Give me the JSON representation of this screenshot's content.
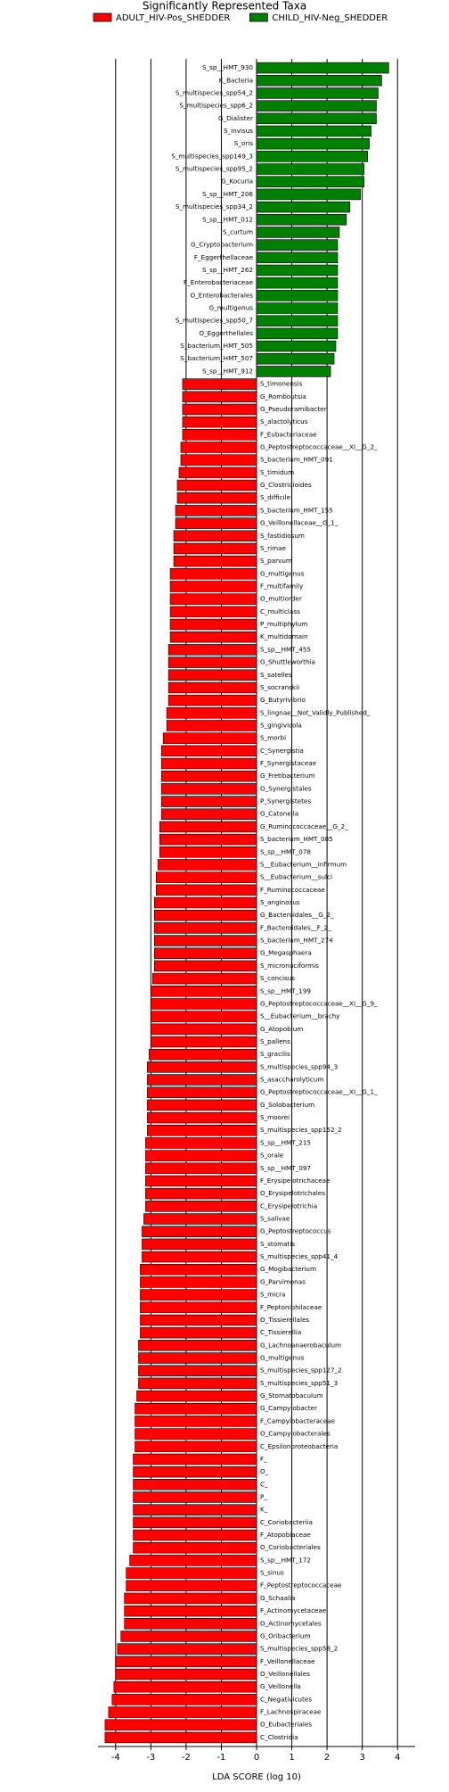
{
  "chart_data": {
    "type": "lda_bar",
    "title": "Significantly Represented Taxa",
    "xlabel": "LDA SCORE (log 10)",
    "xlim": [
      -4.5,
      4.5
    ],
    "xticks": [
      -4,
      -3,
      -2,
      -1,
      0,
      1,
      2,
      3,
      4
    ],
    "grid": true,
    "legend": "top",
    "series": [
      {
        "name": "ADULT_HIV-Pos_SHEDDER",
        "color": "#ff0000",
        "categories": [
          "S_timonensis",
          "G_Romboutsia",
          "G_Pseudoramibacter",
          "S_alactolyticus",
          "F_Eubacteriaceae",
          "G_Peptostreptococcaceae__XI__G_2_",
          "S_bacterium_HMT_091",
          "S_timidum",
          "G_Clostridioides",
          "S_difficile",
          "S_bacterium_HMT_155",
          "G_Veillonellaceae__G_1_",
          "S_fastidiosum",
          "S_rimae",
          "S_parvum",
          "G_multigenus",
          "F_multifamily",
          "O_multiorder",
          "C_multiclass",
          "P_multiphylum",
          "K_multidomain",
          "S_sp__HMT_455",
          "G_Shuttleworthia",
          "S_satelles",
          "S_socranskii",
          "G_Butyrivibrio",
          "S_lingnae__Not_Validly_Published_",
          "S_gingivicola",
          "S_morbi",
          "C_Synergistia",
          "F_Synergistaceae",
          "G_Fretibacterium",
          "O_Synergistales",
          "P_Synergistetes",
          "G_Catonella",
          "G_Ruminococcaceae__G_2_",
          "S_bacterium_HMT_085",
          "S_sp__HMT_078",
          "S__Eubacterium__infirmum",
          "S__Eubacterium__sulci",
          "F_Ruminococcaceae",
          "S_anginosus",
          "G_Bacteroidales__G_2_",
          "F_Bacteroidales__F_2_",
          "S_bacterium_HMT_274",
          "G_Megasphaera",
          "S_micronuciformis",
          "S_concisus",
          "S_sp__HMT_199",
          "G_Peptostreptococcaceae__XI__G_9_",
          "S__Eubacterium__brachy",
          "G_Atopobium",
          "S_pallens",
          "S_gracilis",
          "S_multispecies_spp94_3",
          "S_asaccharolyticum",
          "G_Peptostreptococcaceae__XI__G_1_",
          "G_Solobacterium",
          "S_moorei",
          "S_multispecies_spp152_2",
          "S_sp__HMT_215",
          "S_orale",
          "S_sp__HMT_097",
          "F_Erysipelotrichaceae",
          "O_Erysipelotrichales",
          "C_Erysipelotrichia",
          "S_salivae",
          "G_Peptostreptococcus",
          "S_stomatis",
          "S_multispecies_spp41_4",
          "G_Mogibacterium",
          "G_Parvimonas",
          "S_micra",
          "F_Peptoniphilaceae",
          "O_Tissierellales",
          "C_Tissierellia",
          "G_Lachnoanaerobaculum",
          "G_multigenus",
          "S_multispecies_spp127_2",
          "S_multispecies_spp51_3",
          "G_Stomatobaculum",
          "G_Campylobacter",
          "F_Campylobacteraceae",
          "O_Campylobacterales",
          "C_Epsilonproteobacteria",
          "F_",
          "O_",
          "C_",
          "P_",
          "K_",
          "C_Coriobacteriia",
          "F_Atopobiaceae",
          "O_Coriobacteriales",
          "S_sp__HMT_172",
          "S_sinus",
          "F_Peptostreptococcaceae",
          "G_Schaalia",
          "F_Actinomycetaceae",
          "O_Actinomycetales",
          "G_Oribacterium",
          "S_multispecies_spp58_2",
          "F_Veillonellaceae",
          "O_Veillonellales",
          "G_Veillonella",
          "C_Negativicutes",
          "F_Lachnospiraceae",
          "O_Eubacteriales",
          "C_Clostridia"
        ],
        "values": [
          -2.1,
          -2.1,
          -2.1,
          -2.1,
          -2.1,
          -2.15,
          -2.15,
          -2.2,
          -2.25,
          -2.25,
          -2.3,
          -2.3,
          -2.35,
          -2.35,
          -2.35,
          -2.45,
          -2.45,
          -2.45,
          -2.45,
          -2.45,
          -2.45,
          -2.5,
          -2.5,
          -2.5,
          -2.5,
          -2.5,
          -2.55,
          -2.55,
          -2.65,
          -2.7,
          -2.7,
          -2.7,
          -2.7,
          -2.7,
          -2.7,
          -2.75,
          -2.75,
          -2.75,
          -2.8,
          -2.85,
          -2.85,
          -2.9,
          -2.9,
          -2.9,
          -2.9,
          -2.9,
          -2.9,
          -2.95,
          -3.0,
          -3.0,
          -3.0,
          -3.0,
          -3.0,
          -3.05,
          -3.1,
          -3.1,
          -3.1,
          -3.1,
          -3.1,
          -3.1,
          -3.15,
          -3.15,
          -3.15,
          -3.15,
          -3.15,
          -3.15,
          -3.2,
          -3.25,
          -3.25,
          -3.25,
          -3.3,
          -3.3,
          -3.3,
          -3.3,
          -3.3,
          -3.3,
          -3.35,
          -3.35,
          -3.35,
          -3.35,
          -3.4,
          -3.45,
          -3.45,
          -3.45,
          -3.45,
          -3.5,
          -3.5,
          -3.5,
          -3.5,
          -3.5,
          -3.5,
          -3.5,
          -3.5,
          -3.6,
          -3.7,
          -3.7,
          -3.75,
          -3.75,
          -3.75,
          -3.85,
          -3.95,
          -4.0,
          -4.0,
          -4.05,
          -4.1,
          -4.2,
          -4.3,
          -4.3
        ]
      },
      {
        "name": "CHILD_HIV-Neg_SHEDDER",
        "color": "#008000",
        "categories": [
          "S_sp__HMT_930",
          "K_Bacteria",
          "S_multispecies_spp54_2",
          "S_multispecies_spp6_2",
          "G_Dialister",
          "S_invisus",
          "S_oris",
          "S_multispecies_spp149_3",
          "S_multispecies_spp95_2",
          "G_Kocuria",
          "S_sp__HMT_206",
          "S_multispecies_spp34_2",
          "S_sp__HMT_012",
          "S_curtum",
          "G_Cryptobacterium",
          "F_Eggerthellaceae",
          "S_sp__HMT_262",
          "F_Enterobacteriaceae",
          "O_Enterobacterales",
          "G_multigenus",
          "S_multispecies_spp50_7",
          "O_Eggerthellales",
          "S_bacterium_HMT_505",
          "S_bacterium_HMT_507",
          "S_sp__HMT_912"
        ],
        "values": [
          3.75,
          3.55,
          3.45,
          3.4,
          3.4,
          3.25,
          3.2,
          3.15,
          3.05,
          3.05,
          2.95,
          2.65,
          2.55,
          2.35,
          2.3,
          2.3,
          2.3,
          2.3,
          2.3,
          2.3,
          2.3,
          2.3,
          2.25,
          2.2,
          2.1
        ]
      }
    ]
  }
}
